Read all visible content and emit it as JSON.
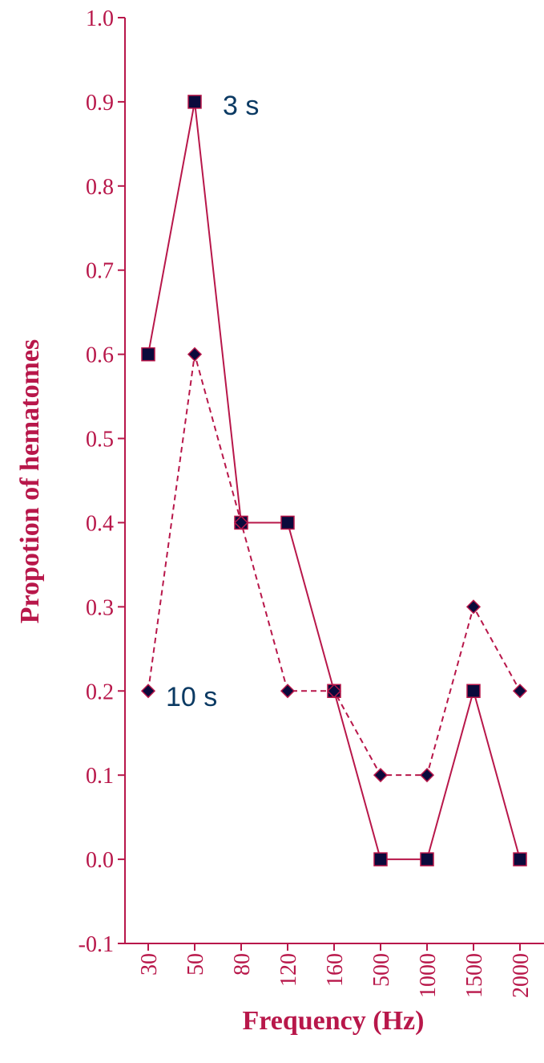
{
  "colors": {
    "axis": "#b8174a",
    "line": "#b8174a",
    "marker_fill": "#0a0a3c",
    "label": "#0b3a63"
  },
  "chart_data": {
    "type": "line",
    "title": "",
    "xlabel": "Frequency (Hz)",
    "ylabel": "Propotion of hematomes",
    "categories": [
      "30",
      "50",
      "80",
      "120",
      "160",
      "500",
      "1000",
      "1500",
      "2000"
    ],
    "ylim": [
      -0.1,
      1.0
    ],
    "yticks": [
      "1.0",
      "0.9",
      "0.8",
      "0.7",
      "0.6",
      "0.5",
      "0.4",
      "0.3",
      "0.2",
      "0.1",
      "0.0",
      "-0.1"
    ],
    "grid": false,
    "series": [
      {
        "name": "3 s",
        "values": [
          0.6,
          0.9,
          0.4,
          0.4,
          0.2,
          0.0,
          0.0,
          0.2,
          0.0
        ],
        "line_style": "solid",
        "marker": "square"
      },
      {
        "name": "10 s",
        "values": [
          0.2,
          0.6,
          0.4,
          0.2,
          0.2,
          0.1,
          0.1,
          0.3,
          0.2
        ],
        "line_style": "dashed",
        "marker": "diamond"
      }
    ]
  }
}
